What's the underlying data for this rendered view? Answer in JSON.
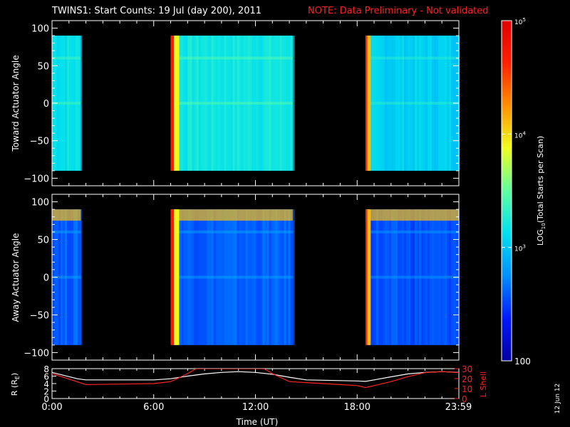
{
  "title": {
    "main": "TWINS1: Start Counts: 19 Jul (day 200), 2011",
    "note": "NOTE: Data Preliminary - Not validated"
  },
  "side_label": "12 Jun 12",
  "colorbar": {
    "label_parts": [
      "LOG",
      "10",
      "(Total Starts per Scan)"
    ],
    "ticks": [
      {
        "value": 100,
        "text": "100"
      },
      {
        "value": 1000,
        "text_base": "10",
        "text_exp": "3"
      },
      {
        "value": 10000,
        "text_base": "10",
        "text_exp": "4"
      },
      {
        "value": 100000,
        "text_base": "10",
        "text_exp": "5"
      }
    ],
    "range": [
      100,
      100000
    ],
    "colors": [
      "#0000a0",
      "#0018ff",
      "#0090ff",
      "#00e0f0",
      "#60ffa0",
      "#f0ff20",
      "#ff9000",
      "#ff2000",
      "#e00000"
    ]
  },
  "chart_data": [
    {
      "type": "heatmap",
      "ylabel": "Toward Actuator Angle",
      "ylim": [
        -110,
        110
      ],
      "yticks": [
        100,
        50,
        0,
        -50,
        -100
      ],
      "xlim": [
        0,
        24
      ],
      "data_angle_range": [
        -90,
        90
      ],
      "segments": [
        {
          "start": 0.0,
          "end": 1.7,
          "level": 3.15
        },
        {
          "start": 7.0,
          "end": 14.2,
          "level": 3.2
        },
        {
          "start": 18.5,
          "end": 24.0,
          "level": 3.05
        }
      ],
      "bright_bands": [
        {
          "start": 7.0,
          "end": 7.2,
          "level": 4.7
        },
        {
          "start": 7.2,
          "end": 7.5,
          "level": 3.9
        },
        {
          "start": 18.5,
          "end": 18.6,
          "level": 4.6
        },
        {
          "start": 18.6,
          "end": 18.8,
          "level": 4.1
        }
      ]
    },
    {
      "type": "heatmap",
      "ylabel": "Away Actuator Angle",
      "ylim": [
        -110,
        110
      ],
      "yticks": [
        100,
        50,
        0,
        -50,
        -100
      ],
      "xlim": [
        0,
        24
      ],
      "data_angle_range": [
        -90,
        90
      ],
      "segments": [
        {
          "start": 0.0,
          "end": 1.7,
          "level": 2.6
        },
        {
          "start": 7.0,
          "end": 14.2,
          "level": 2.6
        },
        {
          "start": 18.5,
          "end": 24.0,
          "level": 2.55
        }
      ],
      "bright_bands": [
        {
          "start": 7.0,
          "end": 7.2,
          "level": 4.7
        },
        {
          "start": 7.2,
          "end": 7.5,
          "level": 3.9
        },
        {
          "start": 18.5,
          "end": 18.6,
          "level": 4.6
        },
        {
          "start": 18.6,
          "end": 18.8,
          "level": 4.1
        }
      ],
      "top_band_level": 4.1
    },
    {
      "type": "line",
      "xlabel": "Time (UT)",
      "ylabel_left": "R (R",
      "ylabel_left_sub": "E",
      "ylabel_left_end": ")",
      "ylabel_right": "L Shell",
      "xlim": [
        0,
        24
      ],
      "ylim_left": [
        0,
        8
      ],
      "ylim_right": [
        0,
        30
      ],
      "yticks_left": [
        0,
        2,
        4,
        6,
        8
      ],
      "yticks_right": [
        0,
        10,
        20,
        30
      ],
      "xticks": [
        {
          "value": 0,
          "label": "0:00"
        },
        {
          "value": 6,
          "label": "6:00"
        },
        {
          "value": 12,
          "label": "12:00"
        },
        {
          "value": 18,
          "label": "18:00"
        },
        {
          "value": 23.98,
          "label": "23:59"
        }
      ],
      "series": [
        {
          "axis": "left",
          "color": "#ffffff",
          "x": [
            0,
            1.5,
            2,
            4,
            6,
            7,
            8,
            9,
            10,
            11,
            12,
            13,
            14,
            15,
            16,
            17,
            18,
            18.5,
            19,
            20,
            21,
            22,
            23,
            24
          ],
          "y": [
            7.0,
            5.3,
            5.0,
            5.0,
            5.0,
            5.3,
            6.0,
            6.6,
            7.0,
            7.2,
            7.0,
            6.5,
            5.7,
            5.0,
            4.9,
            4.8,
            4.7,
            4.6,
            5.0,
            5.8,
            6.6,
            7.0,
            7.2,
            7.0
          ]
        },
        {
          "axis": "right",
          "color": "#ff2020",
          "x": [
            0,
            2,
            4,
            6,
            7,
            8,
            8.5,
            12.5,
            13,
            14,
            15,
            17,
            18,
            18.5,
            19,
            20,
            21,
            22,
            23,
            24
          ],
          "y": [
            25,
            14,
            14.5,
            15,
            17,
            25,
            30,
            30,
            25,
            17,
            16,
            14,
            13,
            11,
            13,
            17,
            22,
            26,
            27,
            26
          ]
        }
      ]
    }
  ]
}
